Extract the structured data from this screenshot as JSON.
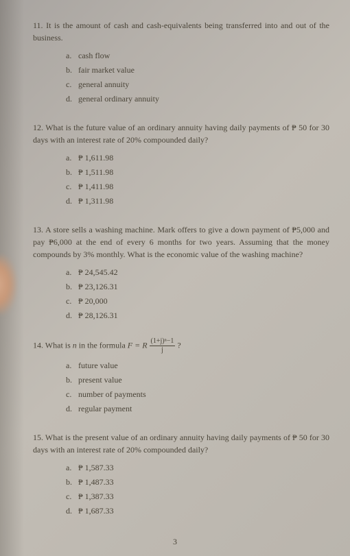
{
  "pageNumber": "3",
  "questions": [
    {
      "number": "11.",
      "stem": "It is the amount of cash and cash-equivalents being transferred into and out of the business.",
      "options": [
        {
          "letter": "a.",
          "text": "cash flow"
        },
        {
          "letter": "b.",
          "text": "fair market value"
        },
        {
          "letter": "c.",
          "text": "general annuity"
        },
        {
          "letter": "d.",
          "text": "general ordinary annuity"
        }
      ]
    },
    {
      "number": "12.",
      "stem": "What is the future value of an ordinary annuity having daily payments of ₱ 50 for 30 days with an interest rate of 20% compounded daily?",
      "options": [
        {
          "letter": "a.",
          "text": "₱ 1,611.98"
        },
        {
          "letter": "b.",
          "text": "₱ 1,511.98"
        },
        {
          "letter": "c.",
          "text": "₱ 1,411.98"
        },
        {
          "letter": "d.",
          "text": "₱ 1,311.98"
        }
      ]
    },
    {
      "number": "13.",
      "stem": "A store sells a washing machine. Mark offers to give a down payment of ₱5,000 and pay ₱6,000 at the end of every 6 months for two years. Assuming that the money compounds by 3% monthly. What is the economic value of the washing machine?",
      "options": [
        {
          "letter": "a.",
          "text": "₱ 24,545.42"
        },
        {
          "letter": "b.",
          "text": "₱ 23,126.31"
        },
        {
          "letter": "c.",
          "text": "₱ 20,000"
        },
        {
          "letter": "d.",
          "text": "₱ 28,126.31"
        }
      ]
    },
    {
      "number": "14.",
      "stemPrefix": "What is ",
      "stemItalic": "n",
      "stemMid": " in the formula ",
      "formulaLeft": "F = R",
      "formulaNum": "(1+j)ⁿ−1",
      "formulaDen": "j",
      "stemSuffix": " ?",
      "options": [
        {
          "letter": "a.",
          "text": "future value"
        },
        {
          "letter": "b.",
          "text": "present value"
        },
        {
          "letter": "c.",
          "text": "number of payments"
        },
        {
          "letter": "d.",
          "text": "regular payment"
        }
      ]
    },
    {
      "number": "15.",
      "stem": "What is the present value of an ordinary annuity having daily payments of ₱ 50 for 30 days with an interest rate of 20% compounded daily?",
      "options": [
        {
          "letter": "a.",
          "text": "₱ 1,587.33"
        },
        {
          "letter": "b.",
          "text": "₱ 1,487.33"
        },
        {
          "letter": "c.",
          "text": "₱ 1,387.33"
        },
        {
          "letter": "d.",
          "text": "₱ 1,687.33"
        }
      ]
    }
  ]
}
